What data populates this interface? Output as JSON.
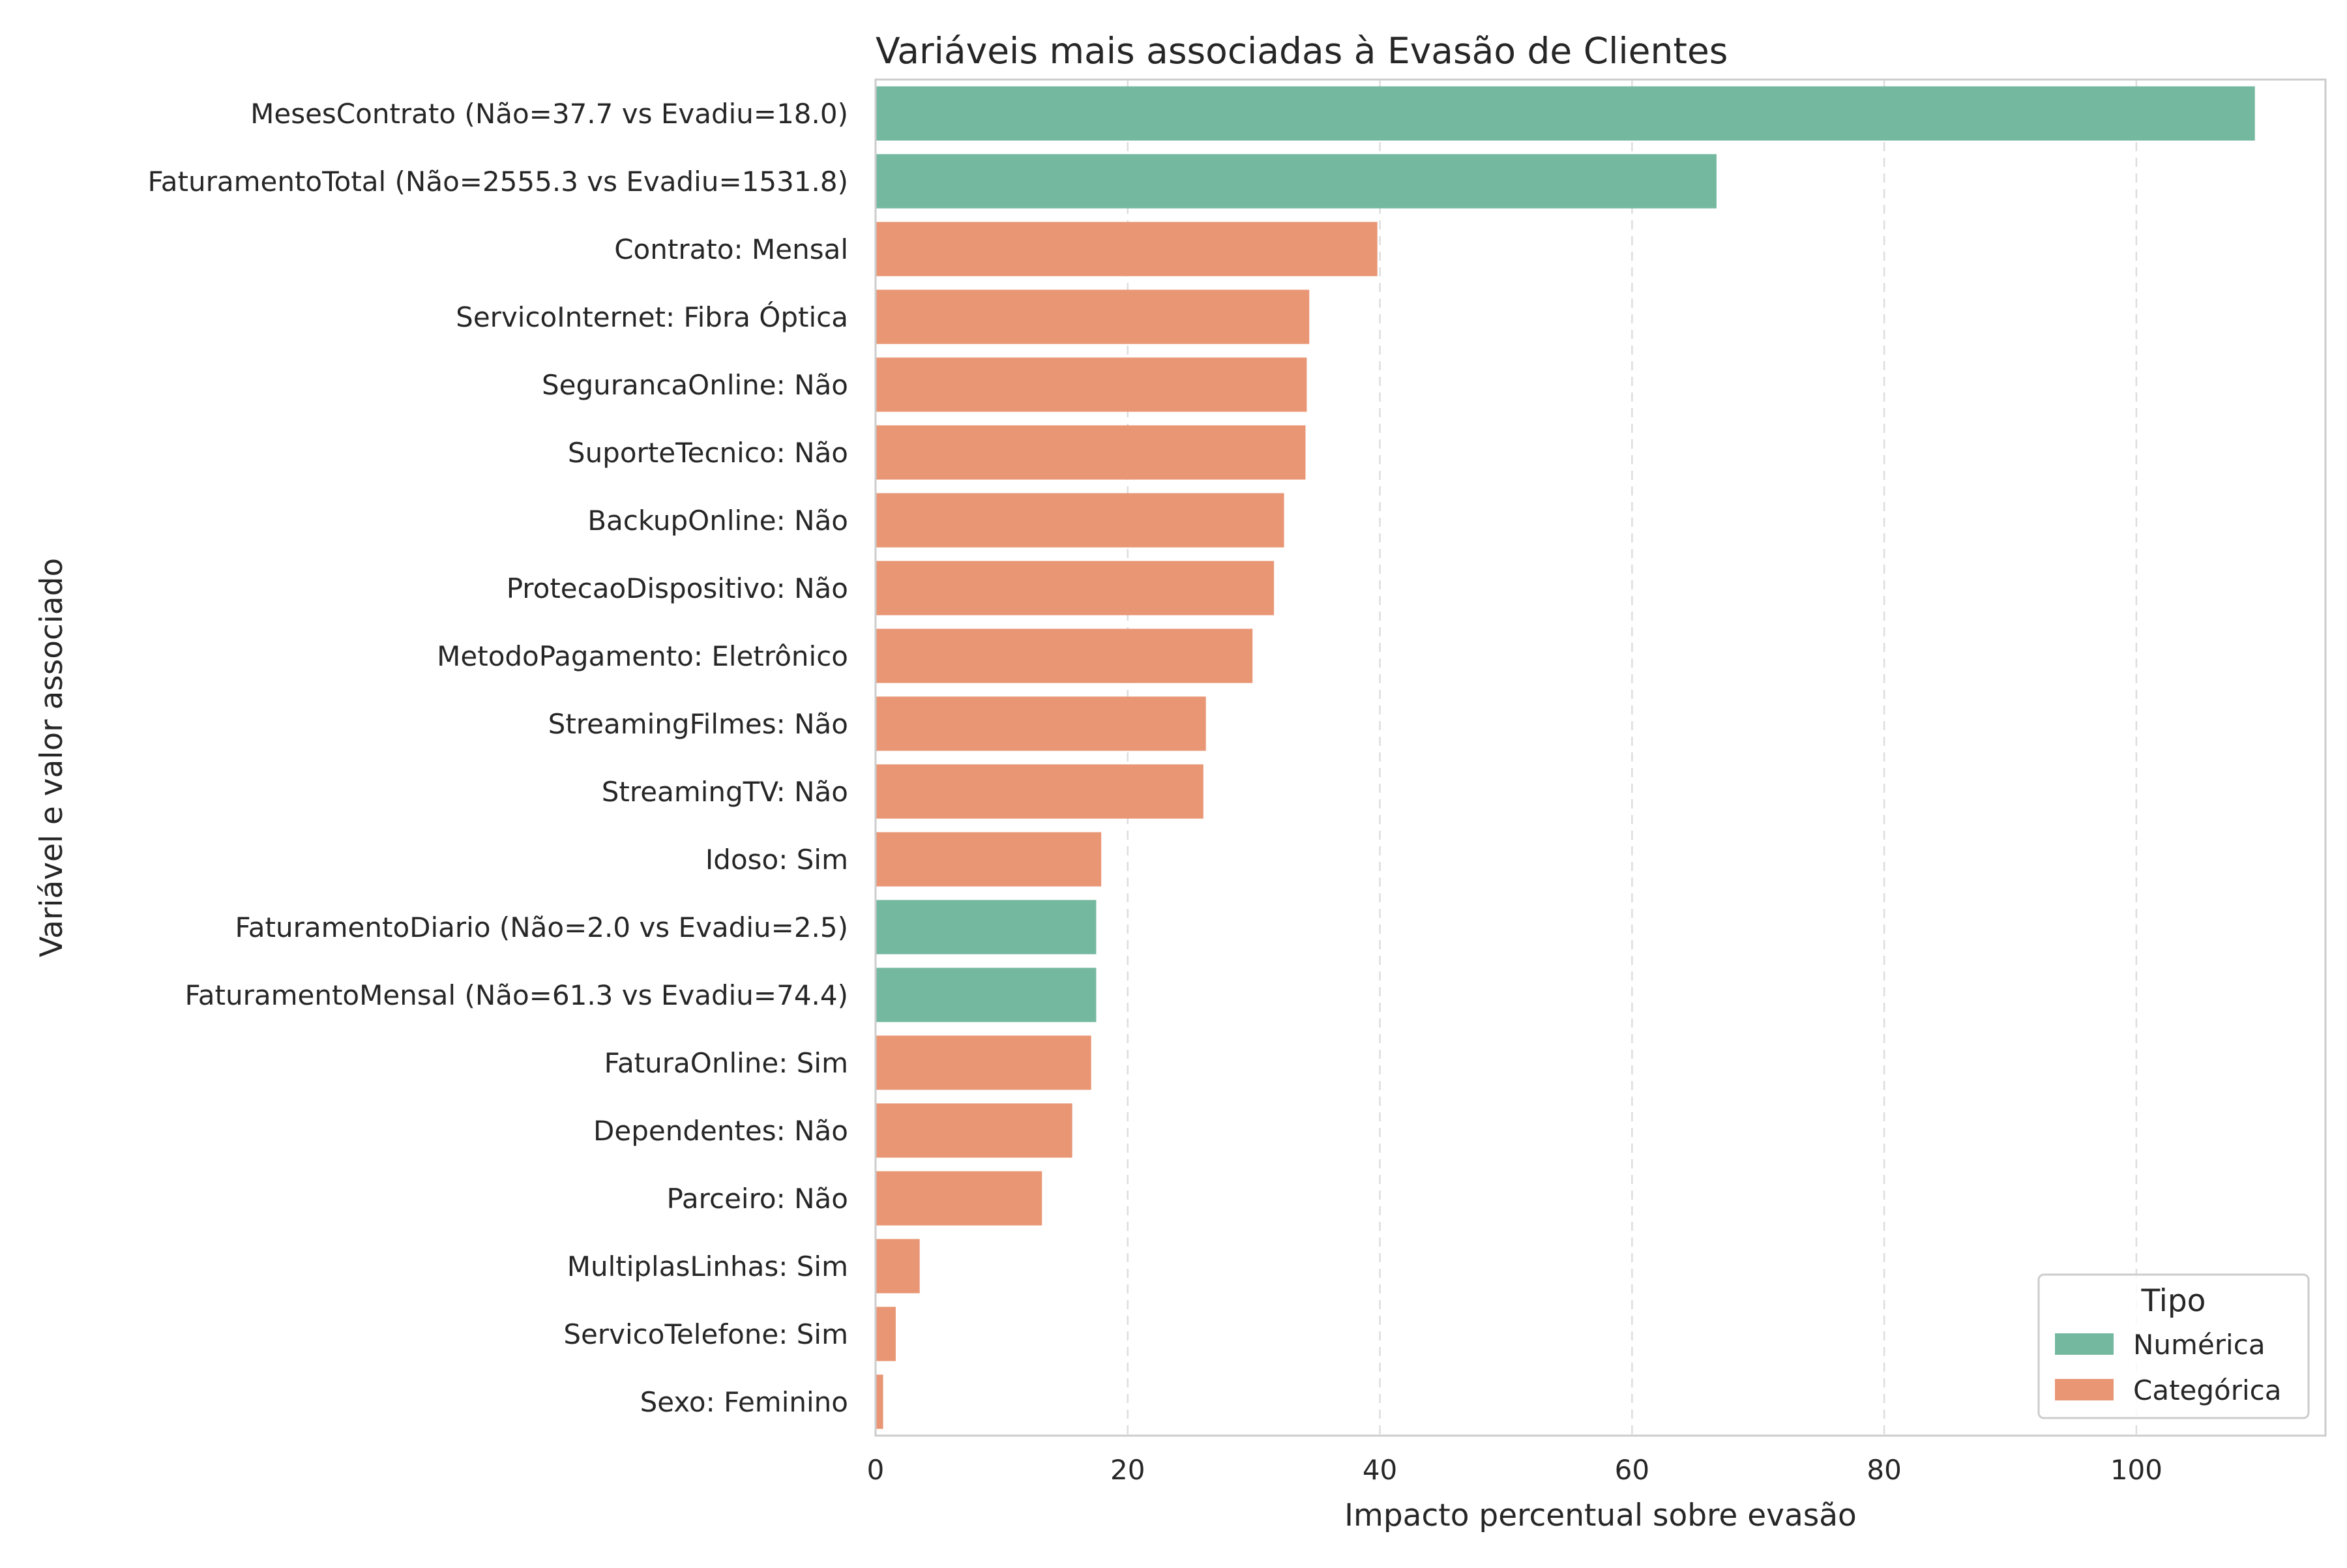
{
  "chart_data": {
    "type": "bar",
    "orientation": "horizontal",
    "title": "Variáveis mais associadas à Evasão de Clientes",
    "xlabel": "Impacto percentual sobre evasão",
    "ylabel": "Variável e valor associado",
    "xlim": [
      0,
      115
    ],
    "xticks": [
      0,
      20,
      40,
      60,
      80,
      100
    ],
    "grid": "x-dashed",
    "legend": {
      "title": "Tipo",
      "placement": "bottom-right",
      "entries": [
        {
          "name": "Numérica",
          "color": "#74b8a0"
        },
        {
          "name": "Categórica",
          "color": "#e99675"
        }
      ]
    },
    "categories": [
      "MesesContrato (Não=37.7 vs Evadiu=18.0)",
      "FaturamentoTotal (Não=2555.3 vs Evadiu=1531.8)",
      "Contrato: Mensal",
      "ServicoInternet: Fibra Óptica",
      "SegurancaOnline: Não",
      "SuporteTecnico: Não",
      "BackupOnline: Não",
      "ProtecaoDispositivo: Não",
      "MetodoPagamento: Eletrônico",
      "StreamingFilmes: Não",
      "StreamingTV: Não",
      "Idoso: Sim",
      "FaturamentoDiario (Não=2.0 vs Evadiu=2.5)",
      "FaturamentoMensal (Não=61.3 vs Evadiu=74.4)",
      "FaturaOnline: Sim",
      "Dependentes: Não",
      "Parceiro: Não",
      "MultiplasLinhas: Sim",
      "ServicoTelefone: Sim",
      "Sexo: Feminino"
    ],
    "values": [
      109.4,
      66.7,
      39.8,
      34.4,
      34.2,
      34.1,
      32.4,
      31.6,
      29.9,
      26.2,
      26.0,
      17.9,
      17.5,
      17.5,
      17.1,
      15.6,
      13.2,
      3.5,
      1.6,
      0.6
    ],
    "types": [
      "Numérica",
      "Numérica",
      "Categórica",
      "Categórica",
      "Categórica",
      "Categórica",
      "Categórica",
      "Categórica",
      "Categórica",
      "Categórica",
      "Categórica",
      "Categórica",
      "Numérica",
      "Numérica",
      "Categórica",
      "Categórica",
      "Categórica",
      "Categórica",
      "Categórica",
      "Categórica"
    ]
  }
}
